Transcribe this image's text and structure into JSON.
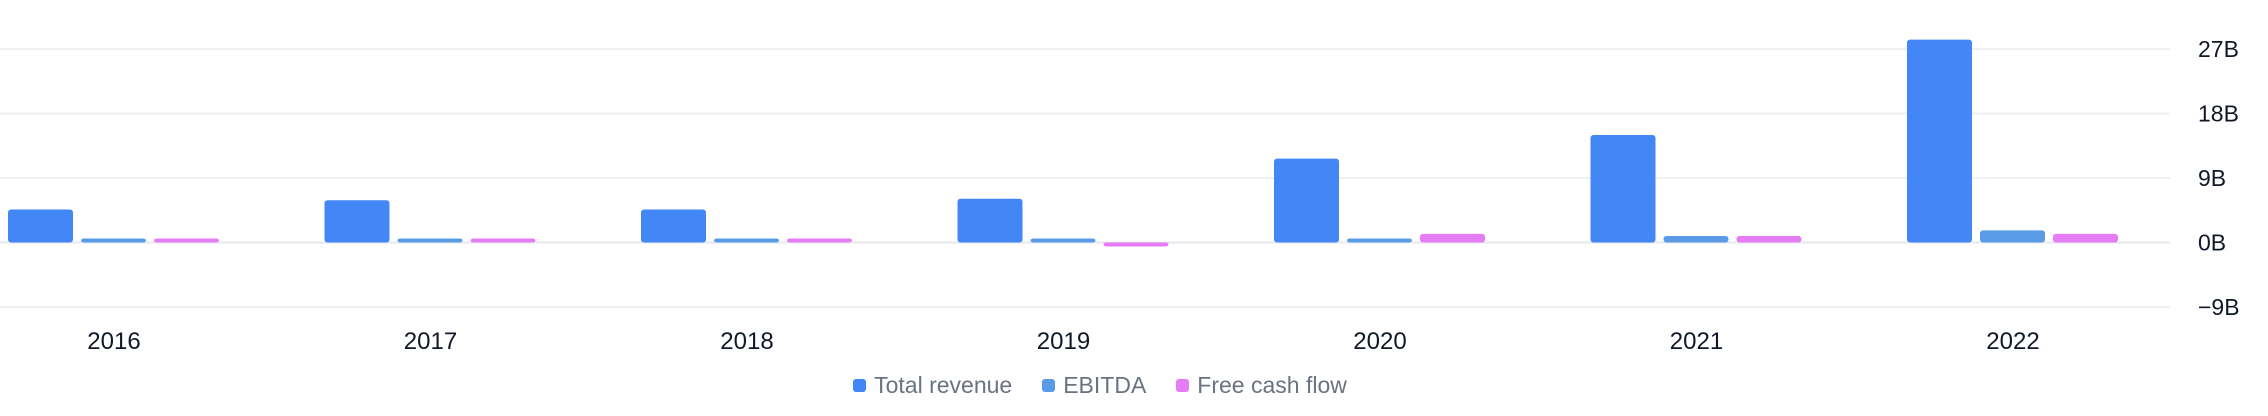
{
  "chart_data": {
    "type": "bar",
    "categories": [
      "2016",
      "2017",
      "2018",
      "2019",
      "2020",
      "2021",
      "2022"
    ],
    "series": [
      {
        "name": "Total revenue",
        "color": "#4287f5",
        "values": [
          4.6,
          5.9,
          4.6,
          6.1,
          11.7,
          15.0,
          28.3
        ]
      },
      {
        "name": "EBITDA",
        "color": "#5a9be8",
        "values": [
          0.3,
          0.3,
          0.3,
          0.3,
          0.4,
          0.9,
          1.7
        ]
      },
      {
        "name": "Free cash flow",
        "color": "#e57cf5",
        "values": [
          0.3,
          0.3,
          0.3,
          -0.2,
          1.2,
          0.9,
          1.2
        ]
      }
    ],
    "y_ticks": [
      "27B",
      "18B",
      "9B",
      "0B",
      "−9B"
    ],
    "y_tick_values": [
      27,
      18,
      9,
      0,
      -9
    ],
    "ylim": [
      -9,
      27
    ],
    "grid": true,
    "legend_position": "bottom-center"
  }
}
